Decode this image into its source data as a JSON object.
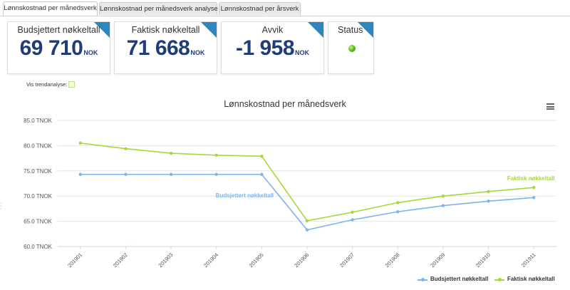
{
  "tabs": [
    {
      "label": "Lønnskostnad per månedsverk",
      "active": true
    },
    {
      "label": "Lønnskostnad per månedsverk analyse",
      "active": false
    },
    {
      "label": "Lønnskostnad per årsverk",
      "active": false
    }
  ],
  "kpis": [
    {
      "title": "Budsjettert nøkkeltall",
      "value": "69 710",
      "unit": "NOK"
    },
    {
      "title": "Faktisk nøkkeltall",
      "value": "71 668",
      "unit": "NOK"
    },
    {
      "title": "Avvik",
      "value": "-1 958",
      "unit": "NOK"
    }
  ],
  "status": {
    "title": "Status",
    "state": "green"
  },
  "trend": {
    "label": "Vis trendanalyse:"
  },
  "colors": {
    "budget": "#7cb5ec",
    "actual": "#a6d83a",
    "accent": "#2f85bd",
    "value": "#1f3d78"
  },
  "chart_data": {
    "type": "line",
    "title": "Lønnskostnad per månedsverk",
    "categories": [
      "201901",
      "201902",
      "201903",
      "201904",
      "201905",
      "201906",
      "201907",
      "201908",
      "201909",
      "201910",
      "201911"
    ],
    "y_ticks": [
      "60.0 TNOK",
      "65.0 TNOK",
      "70.0 TNOK",
      "75.0 TNOK",
      "80.0 TNOK",
      "85.0 TNOK"
    ],
    "ylim": [
      60,
      85
    ],
    "series": [
      {
        "name": "Budsjettert nøkkeltall",
        "values": [
          74.3,
          74.3,
          74.3,
          74.3,
          74.3,
          63.3,
          65.3,
          66.9,
          68.1,
          69.0,
          69.7
        ]
      },
      {
        "name": "Faktisk nøkkeltall",
        "values": [
          80.5,
          79.4,
          78.5,
          78.1,
          77.9,
          65.1,
          66.8,
          68.7,
          70.0,
          70.9,
          71.7
        ]
      }
    ],
    "annotations": [
      {
        "series": 0,
        "text": "Budsjettert nøkkeltall"
      },
      {
        "series": 1,
        "text": "Faktisk nøkkeltall"
      }
    ],
    "legend_position": "bottom-right"
  }
}
